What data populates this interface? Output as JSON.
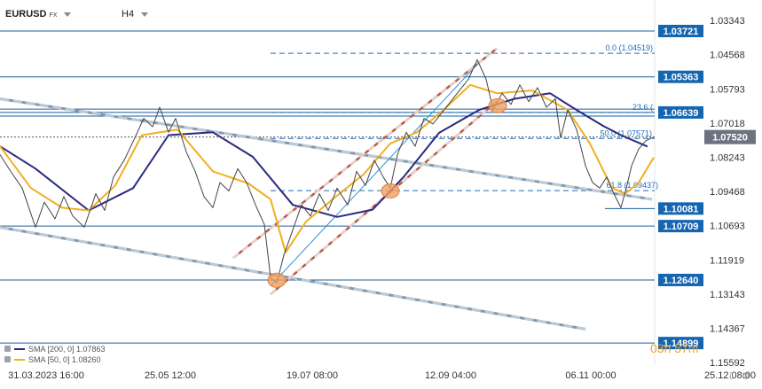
{
  "header": {
    "symbol": "EURUSD",
    "symbol_type": "FX",
    "timeframe": "H4"
  },
  "chart_data": {
    "type": "line",
    "title": "",
    "xlabel": "",
    "ylabel": "",
    "y_ticks": [
      "1.15592",
      "1.14367",
      "1.13143",
      "1.11919",
      "1.10693",
      "1.09468",
      "1.08243",
      "1.07018",
      "1.05793",
      "1.04568",
      "1.03343"
    ],
    "x_ticks": [
      "31.03.2023 16:00",
      "25.05 12:00",
      "19.07 08:00",
      "12.09 04:00",
      "06.11 00:00",
      "25.12 08:00"
    ],
    "ylim": [
      1.0315,
      1.1572
    ],
    "levels": [
      {
        "value": 1.14899,
        "label": "1.14899"
      },
      {
        "value": 1.1264,
        "label": "1.12640"
      },
      {
        "value": 1.10709,
        "label": "1.10709"
      },
      {
        "value": 1.10081,
        "label": "1.10081"
      },
      {
        "value": 1.06639,
        "label": "1.06639"
      },
      {
        "value": 1.05363,
        "label": "1.05363"
      },
      {
        "value": 1.03721,
        "label": "1.03721"
      }
    ],
    "current_price": {
      "value": 1.0752,
      "label": "1.07520"
    },
    "countdown": "03h 57m",
    "fibonacci": [
      {
        "value": 1.09437,
        "label": "61.8 (1.09437)"
      },
      {
        "value": 1.07571,
        "label": "50.0 (1.07571)"
      },
      {
        "value": 1.06639,
        "label": "23.6 ("
      },
      {
        "value": 1.04519,
        "label": "0.0 (1.04519)"
      }
    ],
    "indicators": [
      {
        "name": "SMA [200, 0]",
        "value": "1.07863",
        "color": "#2a2a80"
      },
      {
        "name": "SMA [50, 0]",
        "value": "1.08260",
        "color": "#f0b020"
      }
    ],
    "series": [
      {
        "name": "SMA [200, 0]",
        "color": "#2a2a80",
        "points": [
          [
            0,
            1.0785
          ],
          [
            40,
            1.0865
          ],
          [
            100,
            1.1015
          ],
          [
            150,
            1.0935
          ],
          [
            190,
            1.0745
          ],
          [
            240,
            1.0735
          ],
          [
            285,
            1.0823
          ],
          [
            330,
            1.0995
          ],
          [
            380,
            1.1038
          ],
          [
            420,
            1.1012
          ],
          [
            455,
            1.0895
          ],
          [
            495,
            1.0737
          ],
          [
            540,
            1.0655
          ],
          [
            580,
            1.0615
          ],
          [
            620,
            1.0595
          ],
          [
            650,
            1.0655
          ],
          [
            680,
            1.0712
          ],
          [
            700,
            1.0745
          ],
          [
            730,
            1.0786
          ]
        ]
      },
      {
        "name": "SMA [50, 0]",
        "color": "#f0b020",
        "points": [
          [
            0,
            1.0785
          ],
          [
            35,
            1.0935
          ],
          [
            70,
            1.1005
          ],
          [
            100,
            1.1015
          ],
          [
            130,
            1.0925
          ],
          [
            160,
            1.0745
          ],
          [
            200,
            1.0725
          ],
          [
            240,
            1.0875
          ],
          [
            280,
            1.0918
          ],
          [
            305,
            1.0975
          ],
          [
            322,
            1.1165
          ],
          [
            345,
            1.1055
          ],
          [
            375,
            1.0975
          ],
          [
            410,
            1.0885
          ],
          [
            440,
            1.0775
          ],
          [
            470,
            1.0735
          ],
          [
            500,
            1.0655
          ],
          [
            530,
            1.0565
          ],
          [
            560,
            1.0595
          ],
          [
            600,
            1.0585
          ],
          [
            640,
            1.0655
          ],
          [
            665,
            1.0775
          ],
          [
            690,
            1.0935
          ],
          [
            705,
            1.0955
          ],
          [
            720,
            1.0915
          ],
          [
            737,
            1.0825
          ]
        ]
      },
      {
        "name": "",
        "color": "#444444",
        "points": [
          [
            0,
            1.0815
          ],
          [
            12,
            1.0875
          ],
          [
            25,
            1.0935
          ],
          [
            40,
            1.1075
          ],
          [
            50,
            1.0985
          ],
          [
            62,
            1.1045
          ],
          [
            72,
            1.0965
          ],
          [
            82,
            1.1035
          ],
          [
            95,
            1.1075
          ],
          [
            108,
            1.0955
          ],
          [
            118,
            1.1015
          ],
          [
            128,
            1.0895
          ],
          [
            140,
            1.0835
          ],
          [
            152,
            1.0755
          ],
          [
            162,
            1.0685
          ],
          [
            172,
            1.0715
          ],
          [
            180,
            1.0645
          ],
          [
            190,
            1.0735
          ],
          [
            198,
            1.0685
          ],
          [
            210,
            1.0805
          ],
          [
            220,
            1.0875
          ],
          [
            230,
            1.0965
          ],
          [
            240,
            1.1005
          ],
          [
            248,
            1.0915
          ],
          [
            258,
            1.0945
          ],
          [
            268,
            1.0865
          ],
          [
            278,
            1.0915
          ],
          [
            288,
            1.0995
          ],
          [
            298,
            1.1065
          ],
          [
            305,
            1.1255
          ],
          [
            312,
            1.1275
          ],
          [
            320,
            1.1175
          ],
          [
            330,
            1.1085
          ],
          [
            340,
            1.0995
          ],
          [
            350,
            1.1035
          ],
          [
            360,
            1.0955
          ],
          [
            370,
            1.1015
          ],
          [
            380,
            1.0935
          ],
          [
            392,
            1.0995
          ],
          [
            402,
            1.0875
          ],
          [
            412,
            1.0925
          ],
          [
            422,
            1.0835
          ],
          [
            432,
            1.0895
          ],
          [
            440,
            1.0935
          ],
          [
            448,
            1.0815
          ],
          [
            458,
            1.0735
          ],
          [
            468,
            1.0785
          ],
          [
            478,
            1.0685
          ],
          [
            488,
            1.0705
          ],
          [
            498,
            1.0665
          ],
          [
            508,
            1.0625
          ],
          [
            518,
            1.0585
          ],
          [
            528,
            1.0545
          ],
          [
            538,
            1.0475
          ],
          [
            548,
            1.0545
          ],
          [
            556,
            1.0655
          ],
          [
            566,
            1.0595
          ],
          [
            576,
            1.0635
          ],
          [
            586,
            1.0565
          ],
          [
            596,
            1.0625
          ],
          [
            606,
            1.0575
          ],
          [
            616,
            1.0645
          ],
          [
            626,
            1.0615
          ],
          [
            632,
            1.0755
          ],
          [
            640,
            1.0655
          ],
          [
            650,
            1.0725
          ],
          [
            660,
            1.0855
          ],
          [
            668,
            1.0915
          ],
          [
            676,
            1.0935
          ],
          [
            684,
            1.0895
          ],
          [
            692,
            1.0955
          ],
          [
            700,
            1.1005
          ],
          [
            706,
            1.0935
          ],
          [
            712,
            1.0855
          ],
          [
            720,
            1.0795
          ],
          [
            728,
            1.0765
          ],
          [
            737,
            1.0752
          ]
        ]
      }
    ],
    "trendlines": [
      {
        "style": "dashed-grey",
        "points": [
          [
            0,
            1.1075
          ],
          [
            660,
            1.144
          ]
        ]
      },
      {
        "style": "dashed-grey",
        "points": [
          [
            0,
            1.0615
          ],
          [
            735,
            1.0975
          ]
        ]
      },
      {
        "style": "dashed-red",
        "points": [
          [
            305,
            1.1315
          ],
          [
            560,
            1.0625
          ]
        ]
      },
      {
        "style": "dashed-red",
        "points": [
          [
            263,
            1.1185
          ],
          [
            560,
            1.0435
          ]
        ]
      },
      {
        "style": "solid-blue",
        "points": [
          [
            305,
            1.1285
          ],
          [
            540,
            1.0485
          ]
        ]
      }
    ],
    "markers": [
      {
        "x": 312,
        "y": 1.1265
      },
      {
        "x": 440,
        "y": 1.0945
      },
      {
        "x": 561,
        "y": 1.064
      }
    ]
  }
}
